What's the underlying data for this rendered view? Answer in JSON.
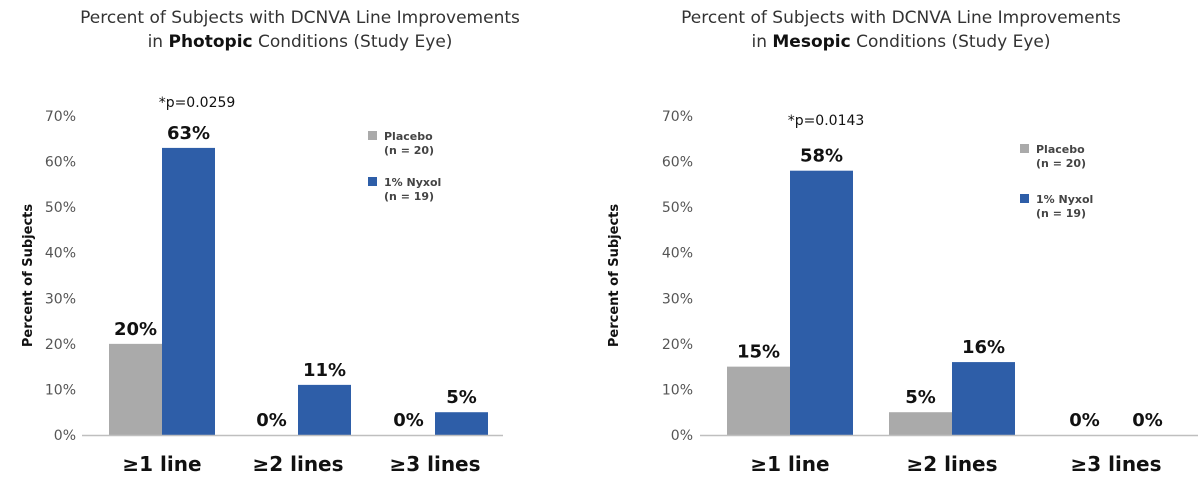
{
  "chart_data": [
    {
      "type": "bar",
      "title_line1": "Percent of Subjects with DCNVA Line Improvements",
      "title_pre": "in ",
      "title_bold": "Photopic",
      "title_post": " Conditions (Study Eye)",
      "ylabel": "Percent of Subjects",
      "ylim": [
        0,
        70
      ],
      "yticks": [
        "0%",
        "10%",
        "20%",
        "30%",
        "40%",
        "50%",
        "60%",
        "70%"
      ],
      "categories": [
        "≥1 line",
        "≥2 lines",
        "≥3 lines"
      ],
      "series": [
        {
          "name": "Placebo",
          "n_label": "(n = 20)",
          "color": "#aaaaaa",
          "values": [
            20,
            0,
            0
          ],
          "labels": [
            "20%",
            "0%",
            "0%"
          ]
        },
        {
          "name": "1% Nyxol",
          "n_label": "(n = 19)",
          "color": "#2e5ea8",
          "values": [
            63,
            11,
            5
          ],
          "labels": [
            "63%",
            "11%",
            "5%"
          ]
        }
      ],
      "annotation": "*p=0.0259",
      "legend_position": "right"
    },
    {
      "type": "bar",
      "title_line1": "Percent of Subjects with DCNVA Line Improvements",
      "title_pre": "in ",
      "title_bold": "Mesopic",
      "title_post": " Conditions (Study Eye)",
      "ylabel": "Percent of Subjects",
      "ylim": [
        0,
        70
      ],
      "yticks": [
        "0%",
        "10%",
        "20%",
        "30%",
        "40%",
        "50%",
        "60%",
        "70%"
      ],
      "categories": [
        "≥1 line",
        "≥2 lines",
        "≥3 lines"
      ],
      "series": [
        {
          "name": "Placebo",
          "n_label": "(n = 20)",
          "color": "#aaaaaa",
          "values": [
            15,
            5,
            0
          ],
          "labels": [
            "15%",
            "5%",
            "0%"
          ]
        },
        {
          "name": "1% Nyxol",
          "n_label": "(n = 19)",
          "color": "#2e5ea8",
          "values": [
            58,
            16,
            0
          ],
          "labels": [
            "58%",
            "16%",
            "0%"
          ]
        }
      ],
      "annotation": "*p=0.0143",
      "legend_position": "right"
    }
  ]
}
